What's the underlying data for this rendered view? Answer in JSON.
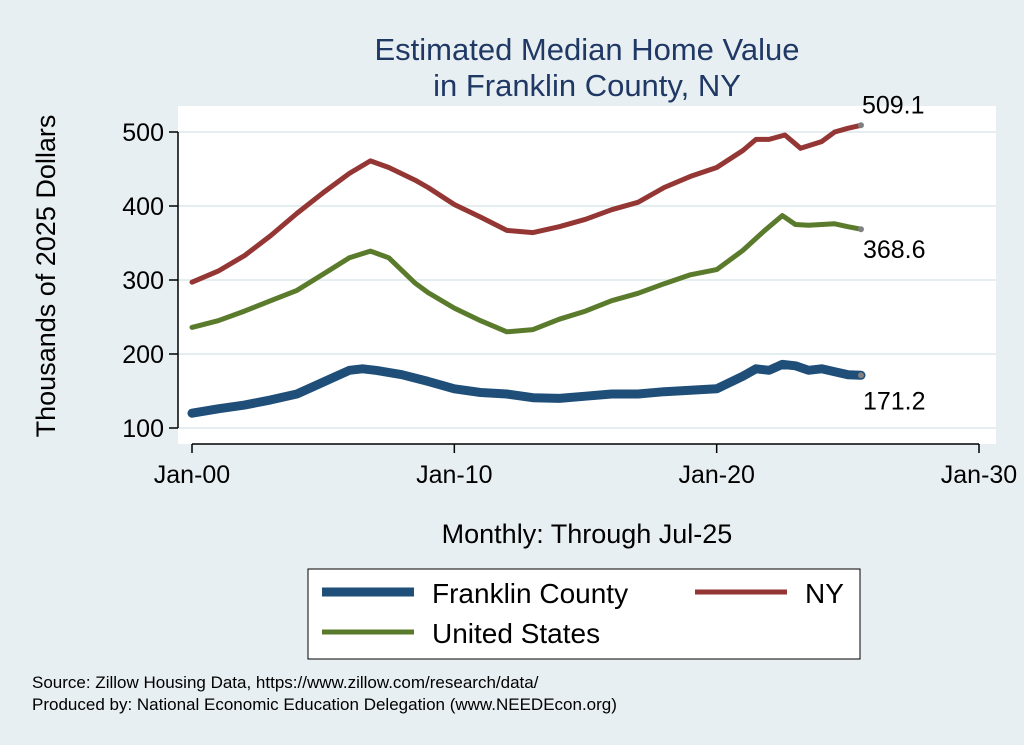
{
  "chart_data": {
    "type": "line",
    "title": [
      "Estimated Median Home Value",
      "in Franklin County, NY"
    ],
    "xlabel": "Monthly: Through Jul-25",
    "ylabel": "Thousands of 2025 Dollars",
    "xlim": [
      2000,
      2030
    ],
    "ylim": [
      100,
      530
    ],
    "x_ticks": [
      {
        "value": 2000,
        "label": "Jan-00"
      },
      {
        "value": 2010,
        "label": "Jan-10"
      },
      {
        "value": 2020,
        "label": "Jan-20"
      },
      {
        "value": 2030,
        "label": "Jan-30"
      }
    ],
    "y_ticks": [
      100,
      200,
      300,
      400,
      500
    ],
    "grid": true,
    "legend": "bottom",
    "series": [
      {
        "name": "Franklin County",
        "color": "#1f4e79",
        "end_label": "171.2",
        "points": [
          [
            2000.0,
            120
          ],
          [
            2001.0,
            126
          ],
          [
            2002.0,
            131
          ],
          [
            2003.0,
            138
          ],
          [
            2004.0,
            146
          ],
          [
            2005.0,
            162
          ],
          [
            2006.0,
            178
          ],
          [
            2006.5,
            180
          ],
          [
            2007.0,
            178
          ],
          [
            2008.0,
            172
          ],
          [
            2009.0,
            163
          ],
          [
            2010.0,
            153
          ],
          [
            2011.0,
            148
          ],
          [
            2012.0,
            146
          ],
          [
            2013.0,
            141
          ],
          [
            2014.0,
            140
          ],
          [
            2015.0,
            143
          ],
          [
            2016.0,
            146
          ],
          [
            2017.0,
            146
          ],
          [
            2018.0,
            149
          ],
          [
            2019.0,
            151
          ],
          [
            2020.0,
            153
          ],
          [
            2021.0,
            170
          ],
          [
            2021.5,
            180
          ],
          [
            2022.0,
            178
          ],
          [
            2022.5,
            186
          ],
          [
            2023.0,
            184
          ],
          [
            2023.5,
            178
          ],
          [
            2024.0,
            180
          ],
          [
            2024.5,
            176
          ],
          [
            2025.0,
            172
          ],
          [
            2025.5,
            171.2
          ]
        ]
      },
      {
        "name": "NY",
        "color": "#943634",
        "end_label": "509.1",
        "points": [
          [
            2000.0,
            297
          ],
          [
            2001.0,
            312
          ],
          [
            2002.0,
            333
          ],
          [
            2003.0,
            360
          ],
          [
            2004.0,
            390
          ],
          [
            2005.0,
            418
          ],
          [
            2006.0,
            444
          ],
          [
            2006.8,
            461
          ],
          [
            2007.5,
            452
          ],
          [
            2008.5,
            435
          ],
          [
            2009.0,
            425
          ],
          [
            2010.0,
            402
          ],
          [
            2011.0,
            385
          ],
          [
            2012.0,
            367
          ],
          [
            2013.0,
            364
          ],
          [
            2014.0,
            372
          ],
          [
            2015.0,
            382
          ],
          [
            2016.0,
            395
          ],
          [
            2017.0,
            405
          ],
          [
            2018.0,
            425
          ],
          [
            2019.0,
            440
          ],
          [
            2020.0,
            452
          ],
          [
            2021.0,
            475
          ],
          [
            2021.5,
            490
          ],
          [
            2022.0,
            490
          ],
          [
            2022.6,
            496
          ],
          [
            2023.2,
            478
          ],
          [
            2024.0,
            487
          ],
          [
            2024.5,
            500
          ],
          [
            2025.0,
            505
          ],
          [
            2025.5,
            509.1
          ]
        ]
      },
      {
        "name": "United States",
        "color": "#5a7b2c",
        "end_label": "368.6",
        "points": [
          [
            2000.0,
            236
          ],
          [
            2001.0,
            245
          ],
          [
            2002.0,
            258
          ],
          [
            2003.0,
            272
          ],
          [
            2004.0,
            286
          ],
          [
            2005.0,
            308
          ],
          [
            2006.0,
            330
          ],
          [
            2006.8,
            339
          ],
          [
            2007.5,
            330
          ],
          [
            2008.5,
            296
          ],
          [
            2009.0,
            283
          ],
          [
            2010.0,
            262
          ],
          [
            2011.0,
            245
          ],
          [
            2012.0,
            230
          ],
          [
            2013.0,
            233
          ],
          [
            2014.0,
            247
          ],
          [
            2015.0,
            258
          ],
          [
            2016.0,
            272
          ],
          [
            2017.0,
            282
          ],
          [
            2018.0,
            295
          ],
          [
            2019.0,
            307
          ],
          [
            2020.0,
            314
          ],
          [
            2021.0,
            340
          ],
          [
            2021.8,
            366
          ],
          [
            2022.5,
            387
          ],
          [
            2023.0,
            375
          ],
          [
            2023.5,
            374
          ],
          [
            2024.0,
            375
          ],
          [
            2024.5,
            376
          ],
          [
            2025.0,
            372
          ],
          [
            2025.5,
            368.6
          ]
        ]
      }
    ],
    "legend_order": [
      0,
      1,
      2
    ],
    "notes": [
      "Source: Zillow Housing Data, https://www.zillow.com/research/data/",
      "Produced by: National Economic Education Delegation (www.NEEDEcon.org)"
    ]
  }
}
